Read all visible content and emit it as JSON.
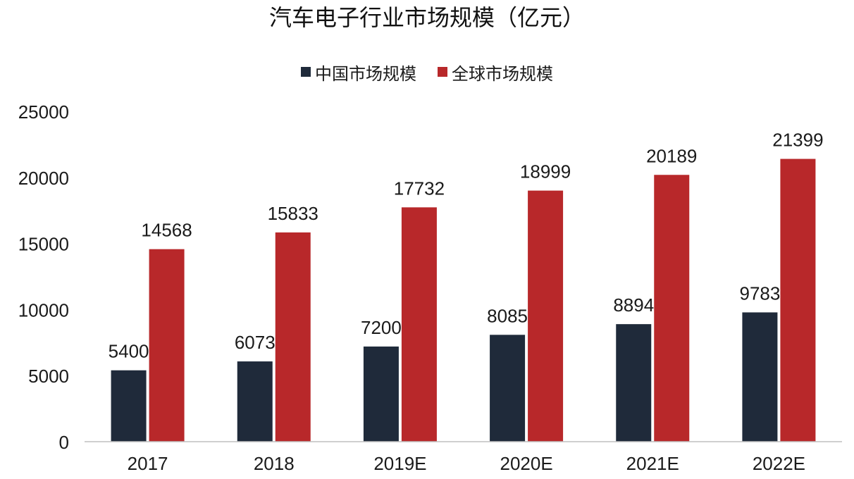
{
  "chart_data": {
    "type": "bar",
    "title": "汽车电子行业市场规模（亿元）",
    "xlabel": "",
    "ylabel": "",
    "categories": [
      "2017",
      "2018",
      "2019E",
      "2020E",
      "2021E",
      "2022E"
    ],
    "series": [
      {
        "name": "中国市场规模",
        "color": "#1f2a3a",
        "values": [
          5400,
          6073,
          7200,
          8085,
          8894,
          9783
        ]
      },
      {
        "name": "全球市场规模",
        "color": "#b8282a",
        "values": [
          14568,
          15833,
          17732,
          18999,
          20189,
          21399
        ]
      }
    ],
    "ylim": [
      0,
      25000
    ],
    "yticks": [
      0,
      5000,
      10000,
      15000,
      20000,
      25000
    ],
    "legend": "top-center",
    "grid": false,
    "data_labels": true
  }
}
